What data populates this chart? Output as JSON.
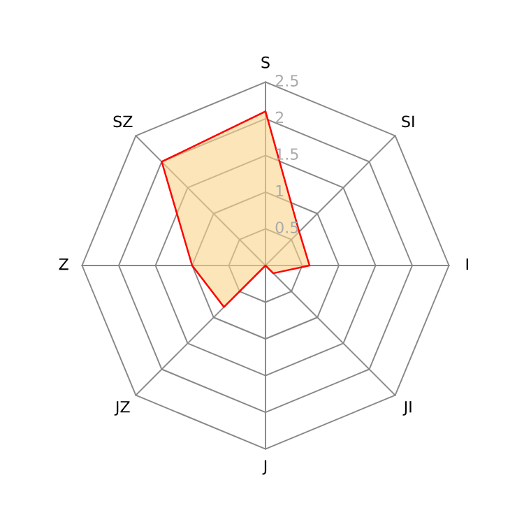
{
  "chart_data": {
    "type": "radar",
    "categories": [
      "S",
      "SI",
      "I",
      "JI",
      "J",
      "JZ",
      "Z",
      "SZ"
    ],
    "series": [
      {
        "color": "#ff0000",
        "values": [
          2.1,
          0.65,
          0.6,
          0.15,
          0,
          0.8,
          1.0,
          2.0
        ]
      }
    ],
    "ylim": [
      0,
      2.5
    ],
    "yticks": [
      0.5,
      1,
      1.5,
      2,
      2.5
    ],
    "grid": true
  }
}
